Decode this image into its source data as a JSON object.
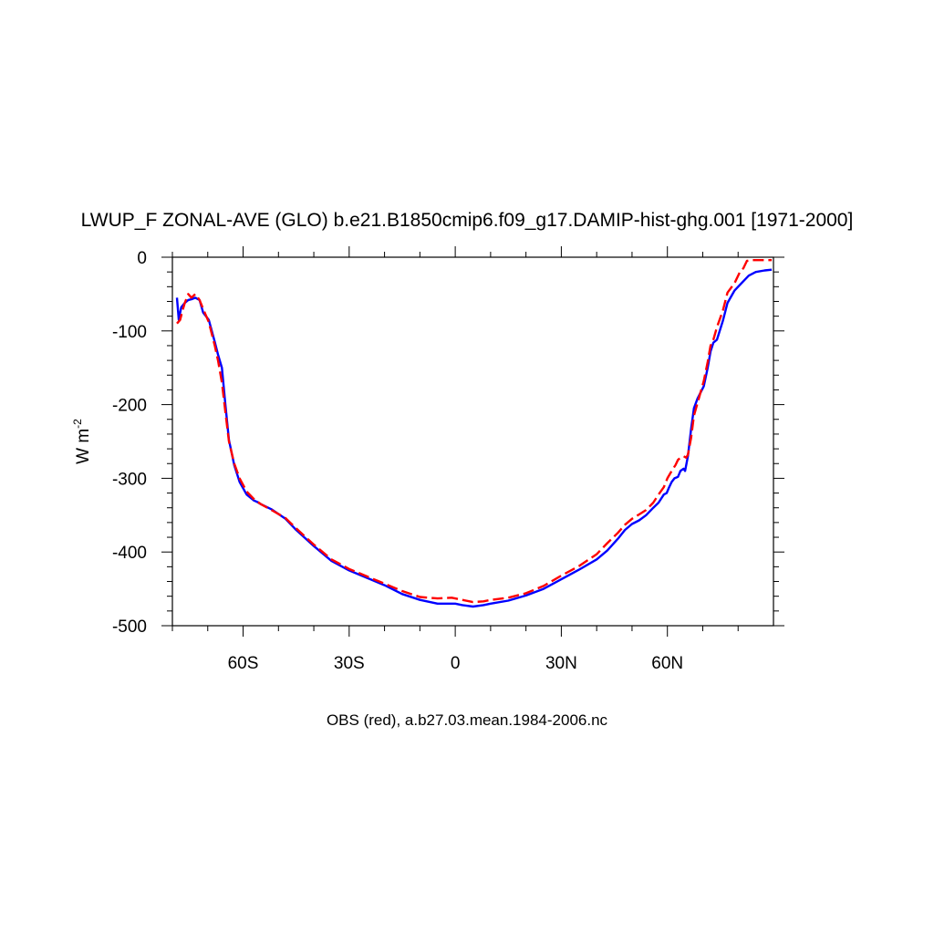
{
  "chart_data": {
    "type": "line",
    "title": "LWUP_F ZONAL-AVE (GLO) b.e21.B1850cmip6.f09_g17.DAMIP-hist-ghg.001 [1971-2000]",
    "xlabel": "OBS (red), a.b27.03.mean.1984-2006.nc",
    "ylabel_main": "W m",
    "ylabel_sup": "-2",
    "xlim": [
      -80,
      90
    ],
    "ylim": [
      -500,
      0
    ],
    "x_ticks": [
      {
        "value": -60,
        "label": "60S"
      },
      {
        "value": -30,
        "label": "30S"
      },
      {
        "value": 0,
        "label": "0"
      },
      {
        "value": 30,
        "label": "30N"
      },
      {
        "value": 60,
        "label": "60N"
      }
    ],
    "y_ticks": [
      {
        "value": 0,
        "label": "0"
      },
      {
        "value": -100,
        "label": "-100"
      },
      {
        "value": -200,
        "label": "-200"
      },
      {
        "value": -300,
        "label": "-300"
      },
      {
        "value": -400,
        "label": "-400"
      },
      {
        "value": -500,
        "label": "-500"
      }
    ],
    "grid": false,
    "series": [
      {
        "color": "#0000ff",
        "dash": "solid",
        "x": [
          -78.7,
          -78.2,
          -77.5,
          -76.5,
          -75.5,
          -74.6,
          -73.5,
          -72.3,
          -71.3,
          -69.7,
          -68.0,
          -67.1,
          -66.0,
          -65.0,
          -64.0,
          -62.5,
          -61.0,
          -59.0,
          -57.0,
          -56.0,
          -55.0,
          -52.0,
          -48.0,
          -45.0,
          -40.0,
          -35.0,
          -30.0,
          -25.0,
          -20.0,
          -15.0,
          -10.0,
          -5.0,
          0.0,
          2.0,
          5.0,
          8.0,
          10.0,
          15.0,
          20.0,
          25.0,
          30.0,
          35.0,
          40.0,
          43.0,
          46.0,
          48.0,
          50.0,
          52.0,
          54.0,
          56.0,
          57.5,
          59.0,
          59.8,
          60.4,
          61.2,
          62.0,
          63.0,
          63.7,
          64.6,
          65.0,
          65.8,
          66.7,
          67.5,
          68.5,
          70.3,
          71.4,
          72.2,
          73.0,
          74.0,
          75.7,
          77.0,
          79.0,
          81.0,
          83.0,
          85.0,
          87.5,
          89.5
        ],
        "y": [
          -55,
          -85,
          -68,
          -62,
          -58,
          -57,
          -55,
          -58,
          -75,
          -85,
          -115,
          -132,
          -150,
          -200,
          -248,
          -282,
          -305,
          -322,
          -330,
          -332,
          -335,
          -342,
          -355,
          -370,
          -392,
          -412,
          -425,
          -435,
          -445,
          -457,
          -465,
          -470,
          -470,
          -472,
          -474,
          -472,
          -470,
          -466,
          -459,
          -450,
          -437,
          -424,
          -410,
          -398,
          -382,
          -370,
          -362,
          -357,
          -350,
          -340,
          -333,
          -322,
          -320,
          -313,
          -305,
          -300,
          -298,
          -290,
          -287,
          -290,
          -270,
          -233,
          -205,
          -192,
          -175,
          -150,
          -128,
          -116,
          -112,
          -86,
          -62,
          -45,
          -35,
          -25,
          -20,
          -18,
          -17
        ]
      },
      {
        "color": "#ff0000",
        "dash": "dashed",
        "x": [
          -78.7,
          -77.8,
          -77.1,
          -76.5,
          -75.5,
          -74.6,
          -73.5,
          -72.3,
          -71.3,
          -69.7,
          -68.0,
          -67.1,
          -66.0,
          -65.0,
          -64.0,
          -62.5,
          -61.0,
          -59.0,
          -57.0,
          -55.0,
          -52.0,
          -48.0,
          -45.0,
          -40.0,
          -35.0,
          -30.0,
          -25.0,
          -20.0,
          -15.0,
          -10.0,
          -5.0,
          -1.0,
          1.0,
          5.0,
          8.0,
          10.0,
          15.0,
          20.0,
          25.0,
          30.0,
          35.0,
          40.0,
          43.0,
          46.0,
          48.0,
          50.0,
          52.0,
          54.0,
          56.0,
          57.5,
          59.0,
          60.0,
          61.2,
          62.3,
          63.0,
          63.7,
          64.6,
          65.3,
          65.8,
          66.7,
          67.5,
          68.5,
          70.3,
          71.4,
          72.2,
          73.0,
          74.0,
          75.7,
          77.0,
          79.0,
          80.5,
          81.5,
          82.5,
          84.0,
          86.0,
          88.0,
          89.5
        ],
        "y": [
          -90,
          -85,
          -72,
          -62,
          -50,
          -55,
          -50,
          -58,
          -70,
          -88,
          -120,
          -140,
          -170,
          -210,
          -250,
          -280,
          -300,
          -318,
          -328,
          -335,
          -343,
          -354,
          -368,
          -390,
          -410,
          -423,
          -433,
          -443,
          -453,
          -461,
          -463,
          -462,
          -464,
          -468,
          -467,
          -465,
          -462,
          -456,
          -446,
          -432,
          -419,
          -403,
          -388,
          -374,
          -363,
          -355,
          -349,
          -343,
          -333,
          -322,
          -312,
          -300,
          -290,
          -282,
          -275,
          -272,
          -270,
          -272,
          -268,
          -245,
          -215,
          -198,
          -168,
          -142,
          -120,
          -112,
          -95,
          -72,
          -48,
          -35,
          -20,
          -15,
          -5,
          -4,
          -4,
          -4,
          -4
        ]
      }
    ]
  }
}
